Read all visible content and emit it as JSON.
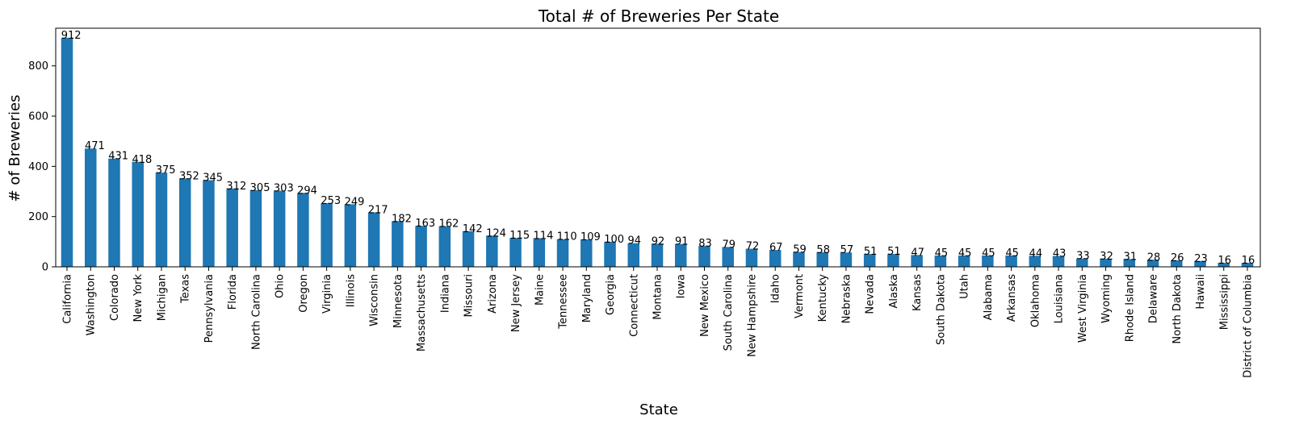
{
  "chart_data": {
    "type": "bar",
    "title": "Total # of Breweries Per State",
    "xlabel": "State",
    "ylabel": "# of Breweries",
    "ylim": [
      0,
      950
    ],
    "yticks": [
      0,
      200,
      400,
      600,
      800
    ],
    "grid": false,
    "legend": "none",
    "bar_color": "#1f77b4",
    "categories": [
      "California",
      "Washington",
      "Colorado",
      "New York",
      "Michigan",
      "Texas",
      "Pennsylvania",
      "Florida",
      "North Carolina",
      "Ohio",
      "Oregon",
      "Virginia",
      "Illinois",
      "Wisconsin",
      "Minnesota",
      "Massachusetts",
      "Indiana",
      "Missouri",
      "Arizona",
      "New Jersey",
      "Maine",
      "Tennessee",
      "Maryland",
      "Georgia",
      "Connecticut",
      "Montana",
      "Iowa",
      "New Mexico",
      "South Carolina",
      "New Hampshire",
      "Idaho",
      "Vermont",
      "Kentucky",
      "Nebraska",
      "Nevada",
      "Alaska",
      "Kansas",
      "South Dakota",
      "Utah",
      "Alabama",
      "Arkansas",
      "Oklahoma",
      "Louisiana",
      "West Virginia",
      "Wyoming",
      "Rhode Island",
      "Delaware",
      "North Dakota",
      "Hawaii",
      "Mississippi",
      "District of Columbia"
    ],
    "values": [
      912,
      471,
      431,
      418,
      375,
      352,
      345,
      312,
      305,
      303,
      294,
      253,
      249,
      217,
      182,
      163,
      162,
      142,
      124,
      115,
      114,
      110,
      109,
      100,
      94,
      92,
      91,
      83,
      79,
      72,
      67,
      59,
      58,
      57,
      51,
      51,
      47,
      45,
      45,
      45,
      45,
      44,
      43,
      33,
      32,
      31,
      28,
      26,
      23,
      16,
      16
    ]
  }
}
